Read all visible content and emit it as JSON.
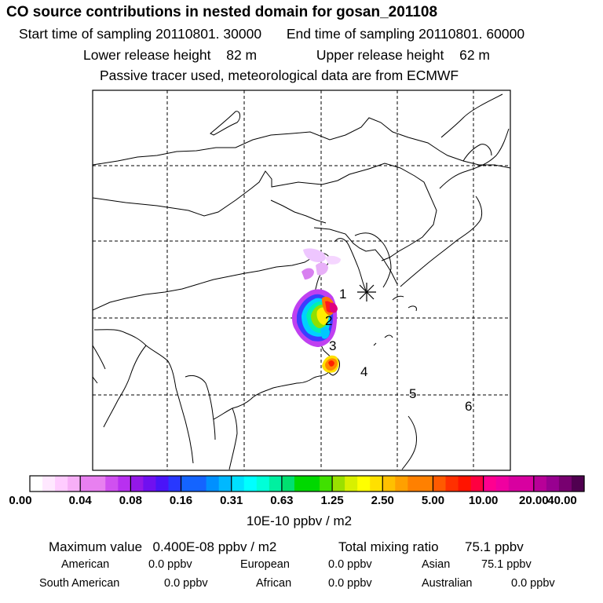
{
  "header": {
    "title": "CO  source contributions in nested domain for gosan_201108",
    "start_label": "Start time of sampling",
    "start_value": "20110801. 30000",
    "end_label": "End time of sampling",
    "end_value": "20110801. 60000",
    "lower_label": "Lower release height",
    "lower_value": "82 m",
    "upper_label": "Upper release height",
    "upper_value": "62 m",
    "note": "Passive tracer used, meteorological data are from ECMWF"
  },
  "map": {
    "receptor_markers": [
      "1",
      "2",
      "3",
      "4",
      "5",
      "6"
    ],
    "station_icon": "asterisk-station-icon",
    "grid": "dashed"
  },
  "colorbar": {
    "ticks": [
      "0.00",
      "0.04",
      "0.08",
      "0.16",
      "0.31",
      "0.63",
      "1.25",
      "2.50",
      "5.00",
      "10.00",
      "20.00",
      "40.00"
    ],
    "unit": "10E-10 ppbv / m2",
    "colors": [
      "#ffffff",
      "#ffe8ff",
      "#ffccff",
      "#f7aff7",
      "#e880f0",
      "#d050f0",
      "#b830f0",
      "#9418e8",
      "#7010f0",
      "#4a14f8",
      "#2838ff",
      "#1464ff",
      "#0090ff",
      "#00b8ff",
      "#00e0ff",
      "#00ffff",
      "#00ffd8",
      "#00f0a0",
      "#00e070",
      "#00d800",
      "#40e000",
      "#9ae000",
      "#d8f000",
      "#ffff00",
      "#ffe000",
      "#ffc000",
      "#ffa000",
      "#ff8000",
      "#ff5a00",
      "#ff3000",
      "#ff1400",
      "#ff0040",
      "#ff0090",
      "#f000a0",
      "#d800a0",
      "#b80098",
      "#980090",
      "#780070",
      "#500050"
    ]
  },
  "footer": {
    "max_label": "Maximum value",
    "max_value": "0.400E-08 ppbv / m2",
    "total_label": "Total mixing ratio",
    "total_value": "75.1 ppbv",
    "regions": [
      {
        "name": "American",
        "value": "0.0 ppbv"
      },
      {
        "name": "European",
        "value": "0.0 ppbv"
      },
      {
        "name": "Asian",
        "value": "75.1 ppbv"
      },
      {
        "name": "South American",
        "value": "0.0 ppbv"
      },
      {
        "name": "African",
        "value": "0.0 ppbv"
      },
      {
        "name": "Australian",
        "value": "0.0 ppbv"
      }
    ]
  }
}
